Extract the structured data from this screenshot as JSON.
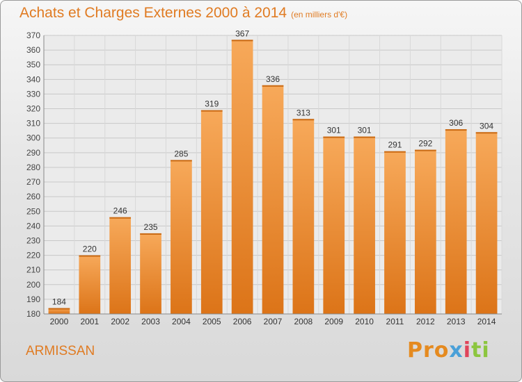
{
  "chart_data": {
    "type": "bar",
    "title": "Achats et Charges Externes 2000 à 2014",
    "unit": "(en milliers d'€)",
    "categories": [
      "2000",
      "2001",
      "2002",
      "2003",
      "2004",
      "2005",
      "2006",
      "2007",
      "2008",
      "2009",
      "2010",
      "2011",
      "2012",
      "2013",
      "2014"
    ],
    "values": [
      184,
      220,
      246,
      235,
      285,
      319,
      367,
      336,
      313,
      301,
      301,
      291,
      292,
      306,
      304
    ],
    "ylim": [
      180,
      370
    ],
    "yticks": [
      180,
      190,
      200,
      210,
      220,
      230,
      240,
      250,
      260,
      270,
      280,
      290,
      300,
      310,
      320,
      330,
      340,
      350,
      360,
      370
    ],
    "grid": true,
    "bar_color": "#f08c2e"
  },
  "footer": {
    "town": "ARMISSAN",
    "logo": [
      "Pro",
      "x",
      "i",
      "ti"
    ]
  }
}
